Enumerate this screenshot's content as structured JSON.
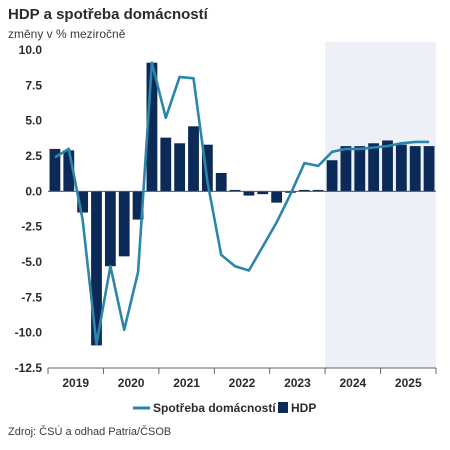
{
  "title": "HDP a spotřeba domácností",
  "subtitle": "změny v % meziročně",
  "source": "Zdroj: ČSÚ a odhad Patria/ČSOB",
  "colors": {
    "gdp": "#0b2a57",
    "consumption": "#2b86aa",
    "forecast_bg": "#eef0f8",
    "axis": "#666666"
  },
  "chart_data": {
    "type": "bar+line",
    "title": "HDP a spotřeba domácností",
    "subtitle": "změny v % meziročně",
    "ylim": [
      -12.5,
      10.0
    ],
    "yticks": [
      10.0,
      7.5,
      5.0,
      2.5,
      0.0,
      -2.5,
      -5.0,
      -7.5,
      -10.0,
      -12.5
    ],
    "ytick_labels": [
      "10.0",
      "7.5",
      "5.0",
      "2.5",
      "0.0",
      "-2.5",
      "-5.0",
      "-7.5",
      "-10.0",
      "-12.5"
    ],
    "years": [
      "2019",
      "2020",
      "2021",
      "2022",
      "2023",
      "2024",
      "2025"
    ],
    "quarters": [
      "2019Q1",
      "2019Q2",
      "2019Q3",
      "2019Q4",
      "2020Q1",
      "2020Q2",
      "2020Q3",
      "2020Q4",
      "2021Q1",
      "2021Q2",
      "2021Q3",
      "2021Q4",
      "2022Q1",
      "2022Q2",
      "2022Q3",
      "2022Q4",
      "2023Q1",
      "2023Q2",
      "2023Q3",
      "2023Q4",
      "2024Q1",
      "2024Q2",
      "2024Q3",
      "2024Q4",
      "2025Q1",
      "2025Q2",
      "2025Q3",
      "2025Q4"
    ],
    "forecast_start": "2024Q1",
    "series": [
      {
        "name": "HDP",
        "kind": "bar",
        "values": [
          3.0,
          2.9,
          -1.5,
          -10.9,
          -5.3,
          -4.6,
          -2.0,
          9.1,
          3.8,
          3.4,
          4.6,
          3.3,
          1.3,
          0.1,
          -0.3,
          -0.2,
          -0.8,
          -0.1,
          0.1,
          0.1,
          2.2,
          3.2,
          3.2,
          3.4,
          3.6,
          3.3,
          3.2,
          3.2
        ]
      },
      {
        "name": "Spotřeba domácností",
        "kind": "line",
        "values": [
          2.4,
          3.0,
          -2.0,
          -10.8,
          -5.3,
          -9.8,
          -5.7,
          9.1,
          5.2,
          8.1,
          8.0,
          0.7,
          -4.5,
          -5.3,
          -5.6,
          -3.9,
          -2.2,
          -0.2,
          2.0,
          1.8,
          2.8,
          3.0,
          3.0,
          3.1,
          3.2,
          3.4,
          3.5,
          3.5
        ]
      }
    ],
    "legend": {
      "placement": "bottom",
      "entries": [
        "Spotřeba domácností",
        "HDP"
      ]
    },
    "grid": false
  }
}
